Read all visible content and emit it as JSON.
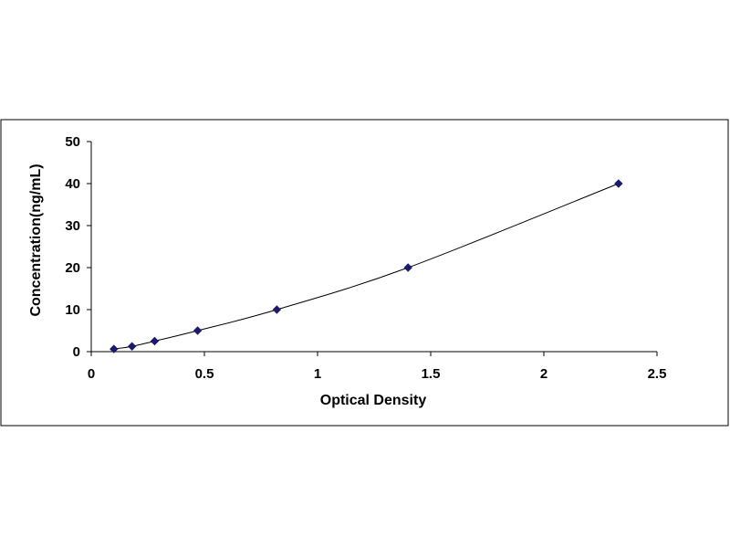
{
  "chart_data": {
    "type": "scatter",
    "title": "",
    "xlabel": "Optical Density",
    "ylabel": "Concentration(ng/mL)",
    "xlim": [
      0,
      2.5
    ],
    "ylim": [
      0,
      50
    ],
    "x_ticks": [
      "0",
      "0.5",
      "1",
      "1.5",
      "2",
      "2.5"
    ],
    "y_ticks": [
      "0",
      "10",
      "20",
      "30",
      "40",
      "50"
    ],
    "grid": false,
    "legend": "none",
    "series": [
      {
        "x": [
          0.1,
          0.18,
          0.28,
          0.47,
          0.82,
          1.4,
          2.33
        ],
        "y": [
          0.625,
          1.25,
          2.5,
          5,
          10,
          20,
          40
        ],
        "marker": "diamond",
        "fit_line": "smooth"
      }
    ],
    "colors": {
      "marker": "#1a1a6e",
      "line": "#000000",
      "frame": "#000000"
    }
  }
}
